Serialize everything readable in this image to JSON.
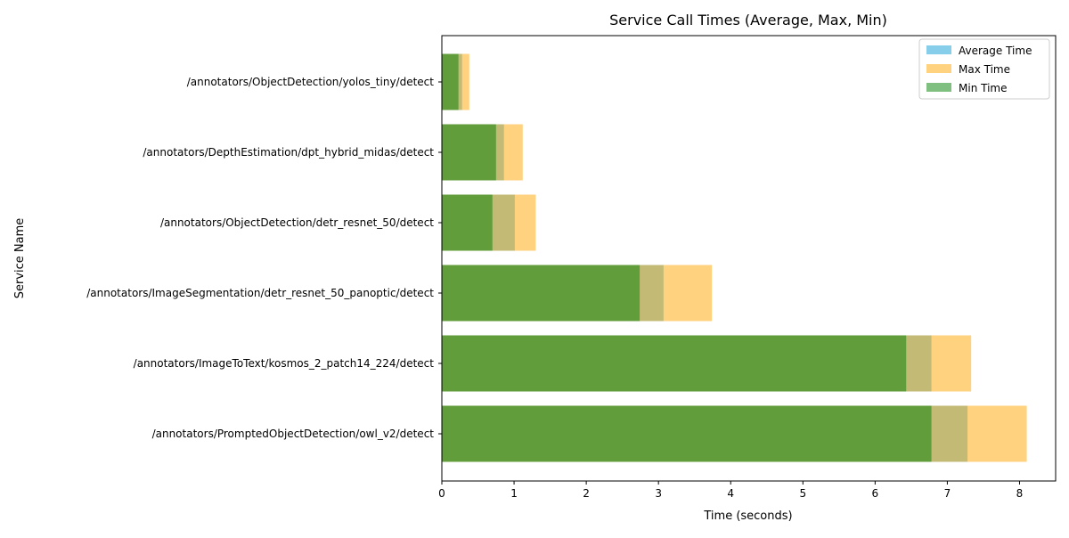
{
  "chart_data": {
    "type": "bar",
    "orientation": "horizontal",
    "title": "Service Call Times (Average, Max, Min)",
    "xlabel": "Time (seconds)",
    "ylabel": "Service Name",
    "xlim": [
      0,
      8.5
    ],
    "xticks": [
      0,
      1,
      2,
      3,
      4,
      5,
      6,
      7,
      8
    ],
    "grid": false,
    "legend_position": "top-right",
    "categories": [
      "/annotators/PromptedObjectDetection/owl_v2/detect",
      "/annotators/ImageToText/kosmos_2_patch14_224/detect",
      "/annotators/ImageSegmentation/detr_resnet_50_panoptic/detect",
      "/annotators/ObjectDetection/detr_resnet_50/detect",
      "/annotators/DepthEstimation/dpt_hybrid_midas/detect",
      "/annotators/ObjectDetection/yolos_tiny/detect"
    ],
    "series": [
      {
        "name": "Average Time",
        "color": "#87ceeb",
        "opacity": 1.0,
        "values": [
          7.28,
          6.78,
          3.07,
          1.01,
          0.86,
          0.28
        ]
      },
      {
        "name": "Max Time",
        "color": "#ffa500",
        "opacity": 0.5,
        "values": [
          8.1,
          7.33,
          3.74,
          1.3,
          1.12,
          0.38
        ]
      },
      {
        "name": "Min Time",
        "color": "#008000",
        "opacity": 0.5,
        "values": [
          6.78,
          6.43,
          2.74,
          0.7,
          0.75,
          0.23
        ]
      }
    ]
  }
}
